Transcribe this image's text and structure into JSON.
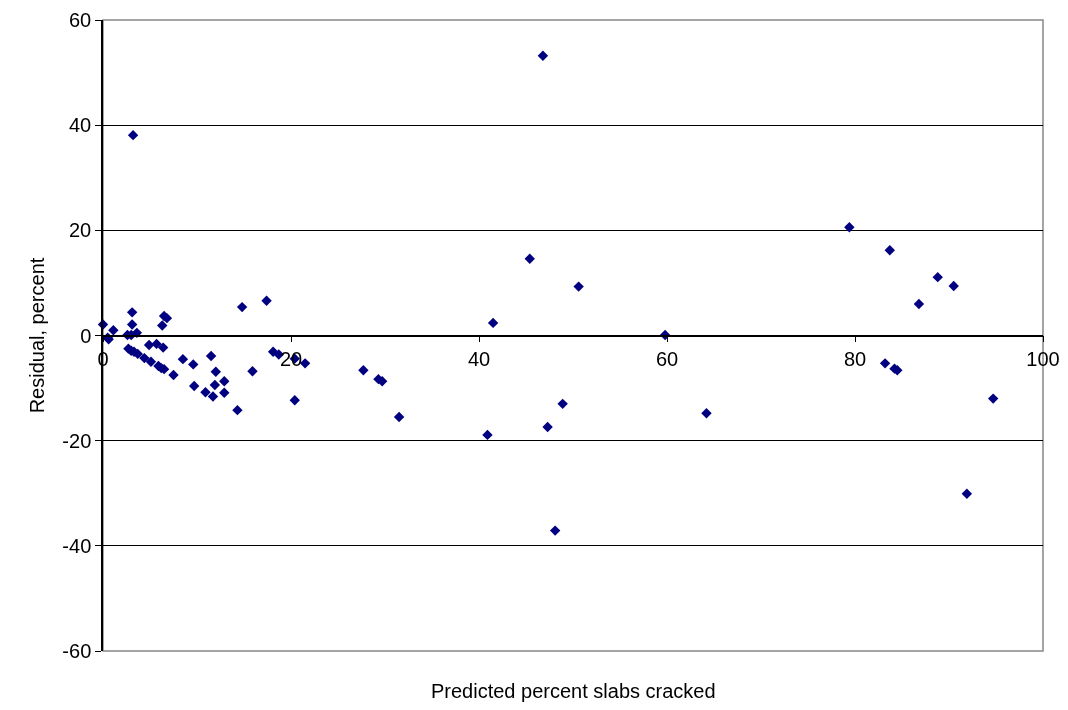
{
  "chart_data": {
    "type": "scatter",
    "xlabel": "Predicted percent slabs cracked",
    "ylabel": "Residual, percent",
    "x": [
      0.0,
      0.5,
      0.6,
      1.1,
      3.1,
      3.1,
      2.6,
      3.0,
      3.6,
      2.7,
      3.0,
      3.3,
      3.7,
      4.4,
      5.1,
      4.9,
      5.7,
      6.4,
      6.3,
      6.5,
      6.8,
      5.9,
      6.2,
      6.5,
      7.5,
      8.5,
      9.6,
      9.7,
      10.9,
      11.7,
      11.5,
      12.0,
      11.9,
      12.9,
      12.9,
      14.3,
      14.8,
      15.9,
      17.4,
      18.1,
      18.7,
      20.4,
      20.4,
      21.5,
      3.2,
      46.8,
      45.4,
      50.6,
      41.5,
      59.8,
      27.7,
      29.3,
      29.7,
      31.5,
      40.9,
      47.3,
      48.9,
      64.2,
      48.1,
      79.4,
      83.7,
      88.8,
      90.5,
      86.8,
      83.2,
      84.2,
      84.5,
      94.7,
      91.9
    ],
    "series": [
      {
        "color": "#000080",
        "values": [
          2.1,
          -0.4,
          -0.7,
          1.0,
          4.4,
          2.1,
          0.1,
          0.1,
          0.5,
          -2.5,
          -2.9,
          -3.1,
          -3.5,
          -4.3,
          -5.0,
          -1.8,
          -1.6,
          -2.3,
          1.9,
          3.7,
          3.3,
          -5.8,
          -6.2,
          -6.4,
          -7.5,
          -4.5,
          -5.5,
          -9.6,
          -10.8,
          -11.6,
          -3.9,
          -6.9,
          -9.4,
          -8.7,
          -10.9,
          -14.2,
          5.4,
          -6.8,
          6.6,
          -3.1,
          -3.6,
          -4.4,
          -12.3,
          -5.3,
          38.1,
          53.2,
          14.6,
          9.3,
          2.4,
          0.1,
          -6.6,
          -8.3,
          -8.7,
          -15.5,
          -18.9,
          -17.4,
          -13.0,
          -14.8,
          -37.1,
          20.6,
          16.2,
          11.1,
          9.4,
          6.0,
          -5.3,
          -6.3,
          -6.6,
          -12.0,
          -30.1
        ]
      }
    ],
    "xlim": [
      0,
      100
    ],
    "xticks": [
      0,
      20,
      40,
      60,
      80,
      100
    ],
    "ylim": [
      -60,
      60
    ],
    "yticks": [
      -60,
      -40,
      -20,
      0,
      20,
      40,
      60
    ],
    "grid": "y",
    "legend": false,
    "marker": "diamond"
  }
}
